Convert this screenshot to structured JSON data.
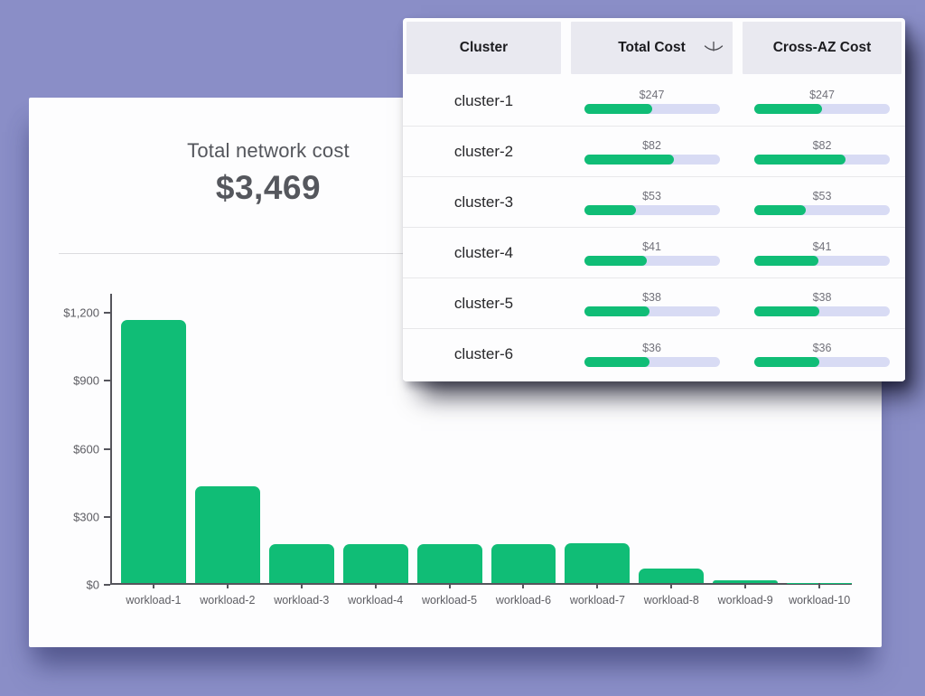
{
  "colors": {
    "background": "#8a8ec7",
    "accent_green": "#10bd76",
    "meter_track": "#d8dbf4",
    "header_cell_bg": "#e9e9f0"
  },
  "stat": {
    "title": "Total network cost",
    "value": "$3,469"
  },
  "chart_data": {
    "type": "bar",
    "title": "Total network cost",
    "total_label": "$3,469",
    "categories": [
      "workload-1",
      "workload-2",
      "workload-3",
      "workload-4",
      "workload-5",
      "workload-6",
      "workload-7",
      "workload-8",
      "workload-9",
      "workload-10"
    ],
    "values": [
      1160,
      425,
      172,
      172,
      172,
      170,
      174,
      65,
      12,
      2
    ],
    "xlabel": "",
    "ylabel": "",
    "ytick_values": [
      0,
      300,
      600,
      900,
      1200
    ],
    "ytick_labels": [
      "$0",
      "$300",
      "$600",
      "$900",
      "$1,200"
    ],
    "ylim": [
      0,
      1284
    ],
    "grid": false,
    "legend": "none",
    "bar_color": "#10bd76"
  },
  "table": {
    "columns": [
      "Cluster",
      "Total Cost",
      "Cross-AZ Cost"
    ],
    "sort_column": "Total Cost",
    "sort_icon": "arrow-down",
    "rows": [
      {
        "cluster": "cluster-1",
        "total_cost": "$247",
        "total_pct": 50,
        "cross_az_cost": "$247",
        "cross_pct": 50
      },
      {
        "cluster": "cluster-2",
        "total_cost": "$82",
        "total_pct": 66,
        "cross_az_cost": "$82",
        "cross_pct": 67
      },
      {
        "cluster": "cluster-3",
        "total_cost": "$53",
        "total_pct": 38,
        "cross_az_cost": "$53",
        "cross_pct": 38
      },
      {
        "cluster": "cluster-4",
        "total_cost": "$41",
        "total_pct": 46,
        "cross_az_cost": "$41",
        "cross_pct": 47
      },
      {
        "cluster": "cluster-5",
        "total_cost": "$38",
        "total_pct": 48,
        "cross_az_cost": "$38",
        "cross_pct": 48
      },
      {
        "cluster": "cluster-6",
        "total_cost": "$36",
        "total_pct": 48,
        "cross_az_cost": "$36",
        "cross_pct": 48
      }
    ]
  }
}
